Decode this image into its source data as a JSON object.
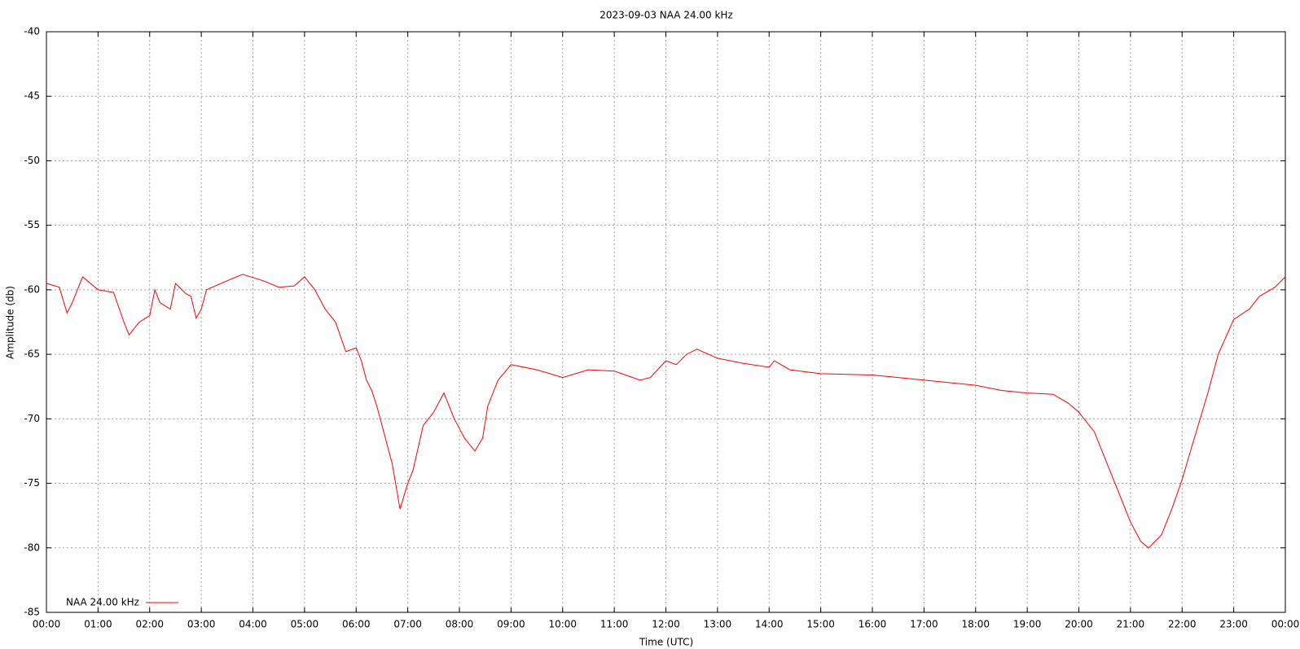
{
  "chart_data": {
    "type": "line",
    "title": "2023-09-03 NAA 24.00 kHz",
    "x_label": "Time (UTC)",
    "y_label": "Amplitude (db)",
    "xlim": [
      0,
      24
    ],
    "xticks": [
      {
        "value": 0,
        "label": "00:00"
      },
      {
        "value": 1,
        "label": "01:00"
      },
      {
        "value": 2,
        "label": "02:00"
      },
      {
        "value": 3,
        "label": "03:00"
      },
      {
        "value": 4,
        "label": "04:00"
      },
      {
        "value": 5,
        "label": "05:00"
      },
      {
        "value": 6,
        "label": "06:00"
      },
      {
        "value": 7,
        "label": "07:00"
      },
      {
        "value": 8,
        "label": "08:00"
      },
      {
        "value": 9,
        "label": "09:00"
      },
      {
        "value": 10,
        "label": "10:00"
      },
      {
        "value": 11,
        "label": "11:00"
      },
      {
        "value": 12,
        "label": "12:00"
      },
      {
        "value": 13,
        "label": "13:00"
      },
      {
        "value": 14,
        "label": "14:00"
      },
      {
        "value": 15,
        "label": "15:00"
      },
      {
        "value": 16,
        "label": "16:00"
      },
      {
        "value": 17,
        "label": "17:00"
      },
      {
        "value": 18,
        "label": "18:00"
      },
      {
        "value": 19,
        "label": "19:00"
      },
      {
        "value": 20,
        "label": "20:00"
      },
      {
        "value": 21,
        "label": "21:00"
      },
      {
        "value": 22,
        "label": "22:00"
      },
      {
        "value": 23,
        "label": "23:00"
      },
      {
        "value": 24,
        "label": "00:00"
      }
    ],
    "ylim": [
      -85,
      -40
    ],
    "yticks": [
      -85,
      -80,
      -75,
      -70,
      -65,
      -60,
      -55,
      -50,
      -45,
      -40
    ],
    "grid": true,
    "legend": "bottom left",
    "x": [
      0,
      0.25,
      0.4,
      0.5,
      0.7,
      1.0,
      1.3,
      1.5,
      1.6,
      1.8,
      2.0,
      2.1,
      2.2,
      2.4,
      2.5,
      2.7,
      2.8,
      2.9,
      3.0,
      3.1,
      3.5,
      3.8,
      4.2,
      4.5,
      4.8,
      5.0,
      5.2,
      5.4,
      5.6,
      5.8,
      6.0,
      6.1,
      6.2,
      6.3,
      6.4,
      6.5,
      6.7,
      6.85,
      7.0,
      7.1,
      7.3,
      7.5,
      7.7,
      7.9,
      8.1,
      8.3,
      8.45,
      8.55,
      8.75,
      9.0,
      9.5,
      10.0,
      10.5,
      11.0,
      11.5,
      11.7,
      12.0,
      12.2,
      12.4,
      12.6,
      13.0,
      13.5,
      14.0,
      14.1,
      14.4,
      15.0,
      16.0,
      17.0,
      18.0,
      18.5,
      19.0,
      19.5,
      19.8,
      20.0,
      20.3,
      20.5,
      20.7,
      21.0,
      21.2,
      21.35,
      21.6,
      21.8,
      22.0,
      22.2,
      22.5,
      22.7,
      23.0,
      23.3,
      23.5,
      23.8,
      24.0
    ],
    "series": [
      {
        "name": "NAA 24.00 kHz",
        "color": "#ff0000",
        "values": [
          -59.5,
          -59.8,
          -61.8,
          -61,
          -59,
          -60,
          -60.2,
          -62.5,
          -63.5,
          -62.5,
          -62,
          -60,
          -61,
          -61.5,
          -59.5,
          -60.3,
          -60.5,
          -62.2,
          -61.5,
          -60,
          -59.3,
          -58.8,
          -59.3,
          -59.8,
          -59.7,
          -59,
          -60,
          -61.5,
          -62.5,
          -64.8,
          -64.5,
          -65.5,
          -67,
          -67.8,
          -69,
          -70.5,
          -73.5,
          -77,
          -75,
          -74,
          -70.5,
          -69.5,
          -68,
          -70,
          -71.5,
          -72.5,
          -71.5,
          -69,
          -67,
          -65.8,
          -66.2,
          -66.8,
          -66.2,
          -66.3,
          -67,
          -66.8,
          -65.5,
          -65.8,
          -65,
          -64.6,
          -65.3,
          -65.7,
          -66,
          -65.5,
          -66.2,
          -66.5,
          -66.6,
          -67,
          -67.4,
          -67.8,
          -68,
          -68.1,
          -68.8,
          -69.5,
          -71,
          -73,
          -75,
          -78,
          -79.5,
          -80,
          -79,
          -77,
          -74.7,
          -72,
          -68,
          -65,
          -62.3,
          -61.5,
          -60.5,
          -59.8,
          -59
        ]
      }
    ]
  }
}
